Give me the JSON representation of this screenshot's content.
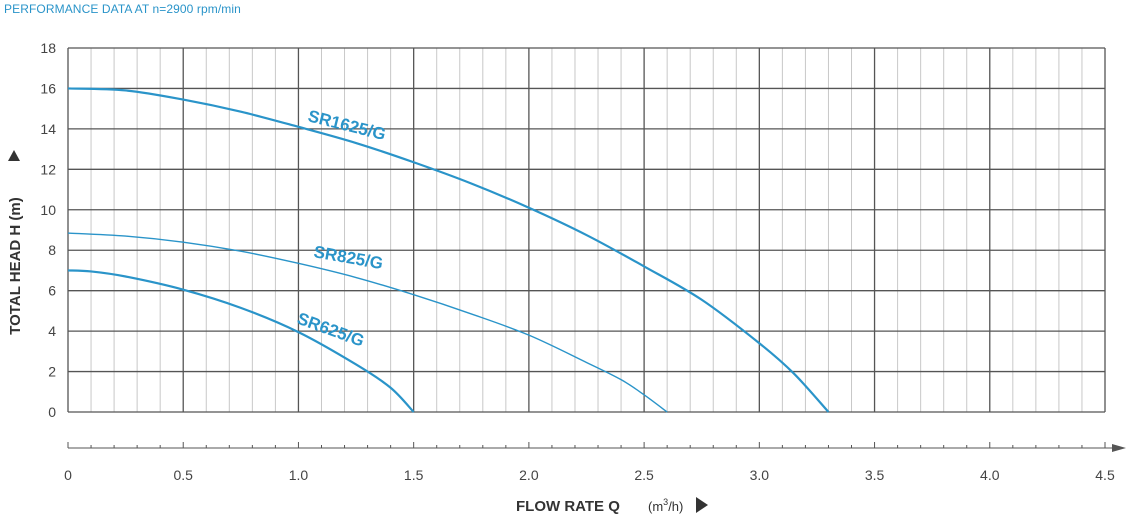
{
  "header": {
    "title": "PERFORMANCE DATA AT n=2900 rpm/min"
  },
  "colors": {
    "curve": "#2a94c9",
    "grid_major": "#555555",
    "grid_minor": "#c8c8c8",
    "text": "#444444"
  },
  "chart_data": {
    "type": "line",
    "title": "PERFORMANCE DATA AT n=2900 rpm/min",
    "xlabel": "FLOW RATE Q",
    "xunit_base": "(m",
    "xunit_sup": "3",
    "xunit_tail": "/h)",
    "ylabel": "TOTAL HEAD H (m)",
    "xlim": [
      0,
      4.5
    ],
    "ylim": [
      0,
      18
    ],
    "x_ticks": [
      "0",
      "0.5",
      "1.0",
      "1.5",
      "2.0",
      "2.5",
      "3.0",
      "3.5",
      "4.0",
      "4.5"
    ],
    "y_ticks": [
      "0",
      "2",
      "4",
      "6",
      "8",
      "10",
      "12",
      "14",
      "16",
      "18"
    ],
    "grid": true,
    "series": [
      {
        "name": "SR1625/G",
        "x": [
          0,
          0.25,
          0.5,
          0.75,
          1.0,
          1.25,
          1.5,
          1.75,
          2.0,
          2.25,
          2.5,
          2.75,
          3.0,
          3.15,
          3.3
        ],
        "y": [
          16,
          15.9,
          15.45,
          14.85,
          14.1,
          13.3,
          12.35,
          11.3,
          10.1,
          8.75,
          7.2,
          5.55,
          3.4,
          1.9,
          0
        ]
      },
      {
        "name": "SR825/G",
        "x": [
          0,
          0.25,
          0.5,
          0.75,
          1.0,
          1.25,
          1.5,
          1.75,
          2.0,
          2.25,
          2.4,
          2.5,
          2.6
        ],
        "y": [
          8.85,
          8.7,
          8.4,
          7.95,
          7.35,
          6.65,
          5.8,
          4.85,
          3.8,
          2.45,
          1.6,
          0.85,
          0
        ]
      },
      {
        "name": "SR625/G",
        "x": [
          0,
          0.1,
          0.25,
          0.5,
          0.75,
          1.0,
          1.25,
          1.4,
          1.5
        ],
        "y": [
          7.0,
          6.95,
          6.7,
          6.05,
          5.15,
          3.95,
          2.35,
          1.2,
          0
        ]
      }
    ]
  }
}
